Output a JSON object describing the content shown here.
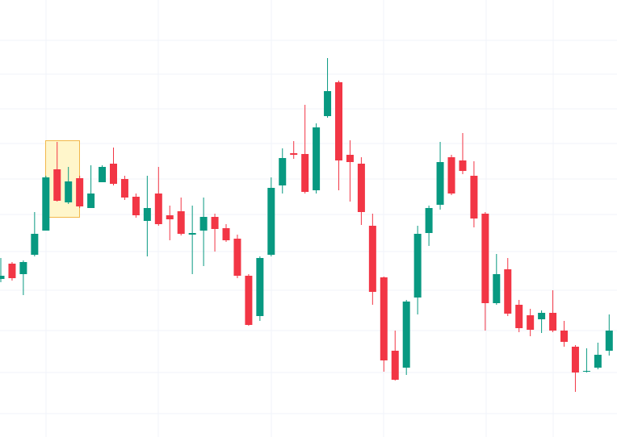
{
  "chart_data": {
    "type": "candlestick",
    "up_color": "#089981",
    "down_color": "#f23645",
    "grid": true,
    "ylim": [
      0,
      542
    ],
    "yticks": [
      492,
      450,
      407,
      364,
      320,
      276,
      230,
      182,
      132,
      80,
      29
    ],
    "open": [
      196,
      215,
      202,
      226,
      256,
      332,
      291,
      321,
      284,
      316,
      339,
      320,
      298,
      268,
      302,
      275,
      280,
      251,
      256,
      273,
      259,
      246,
      200,
      150,
      226,
      312,
      352,
      351,
      306,
      398,
      440,
      350,
      339,
      262,
      198,
      107,
      86,
      173,
      253,
      288,
      347,
      343,
      324,
      277,
      166,
      208,
      164,
      151,
      146,
      154,
      132,
      112,
      81,
      86,
      107
    ],
    "high": [
      222,
      217,
      219,
      279,
      324,
      366,
      335,
      324,
      337,
      337,
      359,
      324,
      302,
      324,
      335,
      287,
      297,
      287,
      297,
      277,
      264,
      251,
      202,
      224,
      322,
      358,
      367,
      412,
      389,
      470,
      442,
      368,
      347,
      277,
      199,
      132,
      170,
      262,
      287,
      366,
      350,
      377,
      342,
      279,
      227,
      222,
      170,
      159,
      157,
      182,
      144,
      114,
      110,
      117,
      152
    ],
    "low": [
      192,
      194,
      176,
      224,
      256,
      292,
      289,
      284,
      284,
      316,
      312,
      294,
      272,
      224,
      262,
      244,
      250,
      202,
      212,
      230,
      242,
      197,
      138,
      144,
      224,
      302,
      345,
      302,
      302,
      396,
      306,
      292,
      263,
      164,
      81,
      70,
      77,
      152,
      237,
      282,
      300,
      326,
      260,
      132,
      164,
      150,
      130,
      125,
      129,
      130,
      112,
      56,
      80,
      84,
      101
    ],
    "close": [
      200,
      197,
      217,
      252,
      322,
      293,
      317,
      286,
      302,
      335,
      314,
      297,
      275,
      284,
      264,
      270,
      252,
      253,
      273,
      258,
      244,
      200,
      139,
      222,
      309,
      346,
      350,
      304,
      384,
      429,
      343,
      341,
      279,
      180,
      95,
      71,
      168,
      252,
      284,
      341,
      302,
      330,
      271,
      166,
      202,
      153,
      135,
      133,
      154,
      132,
      118,
      80,
      82,
      102,
      132
    ]
  }
}
